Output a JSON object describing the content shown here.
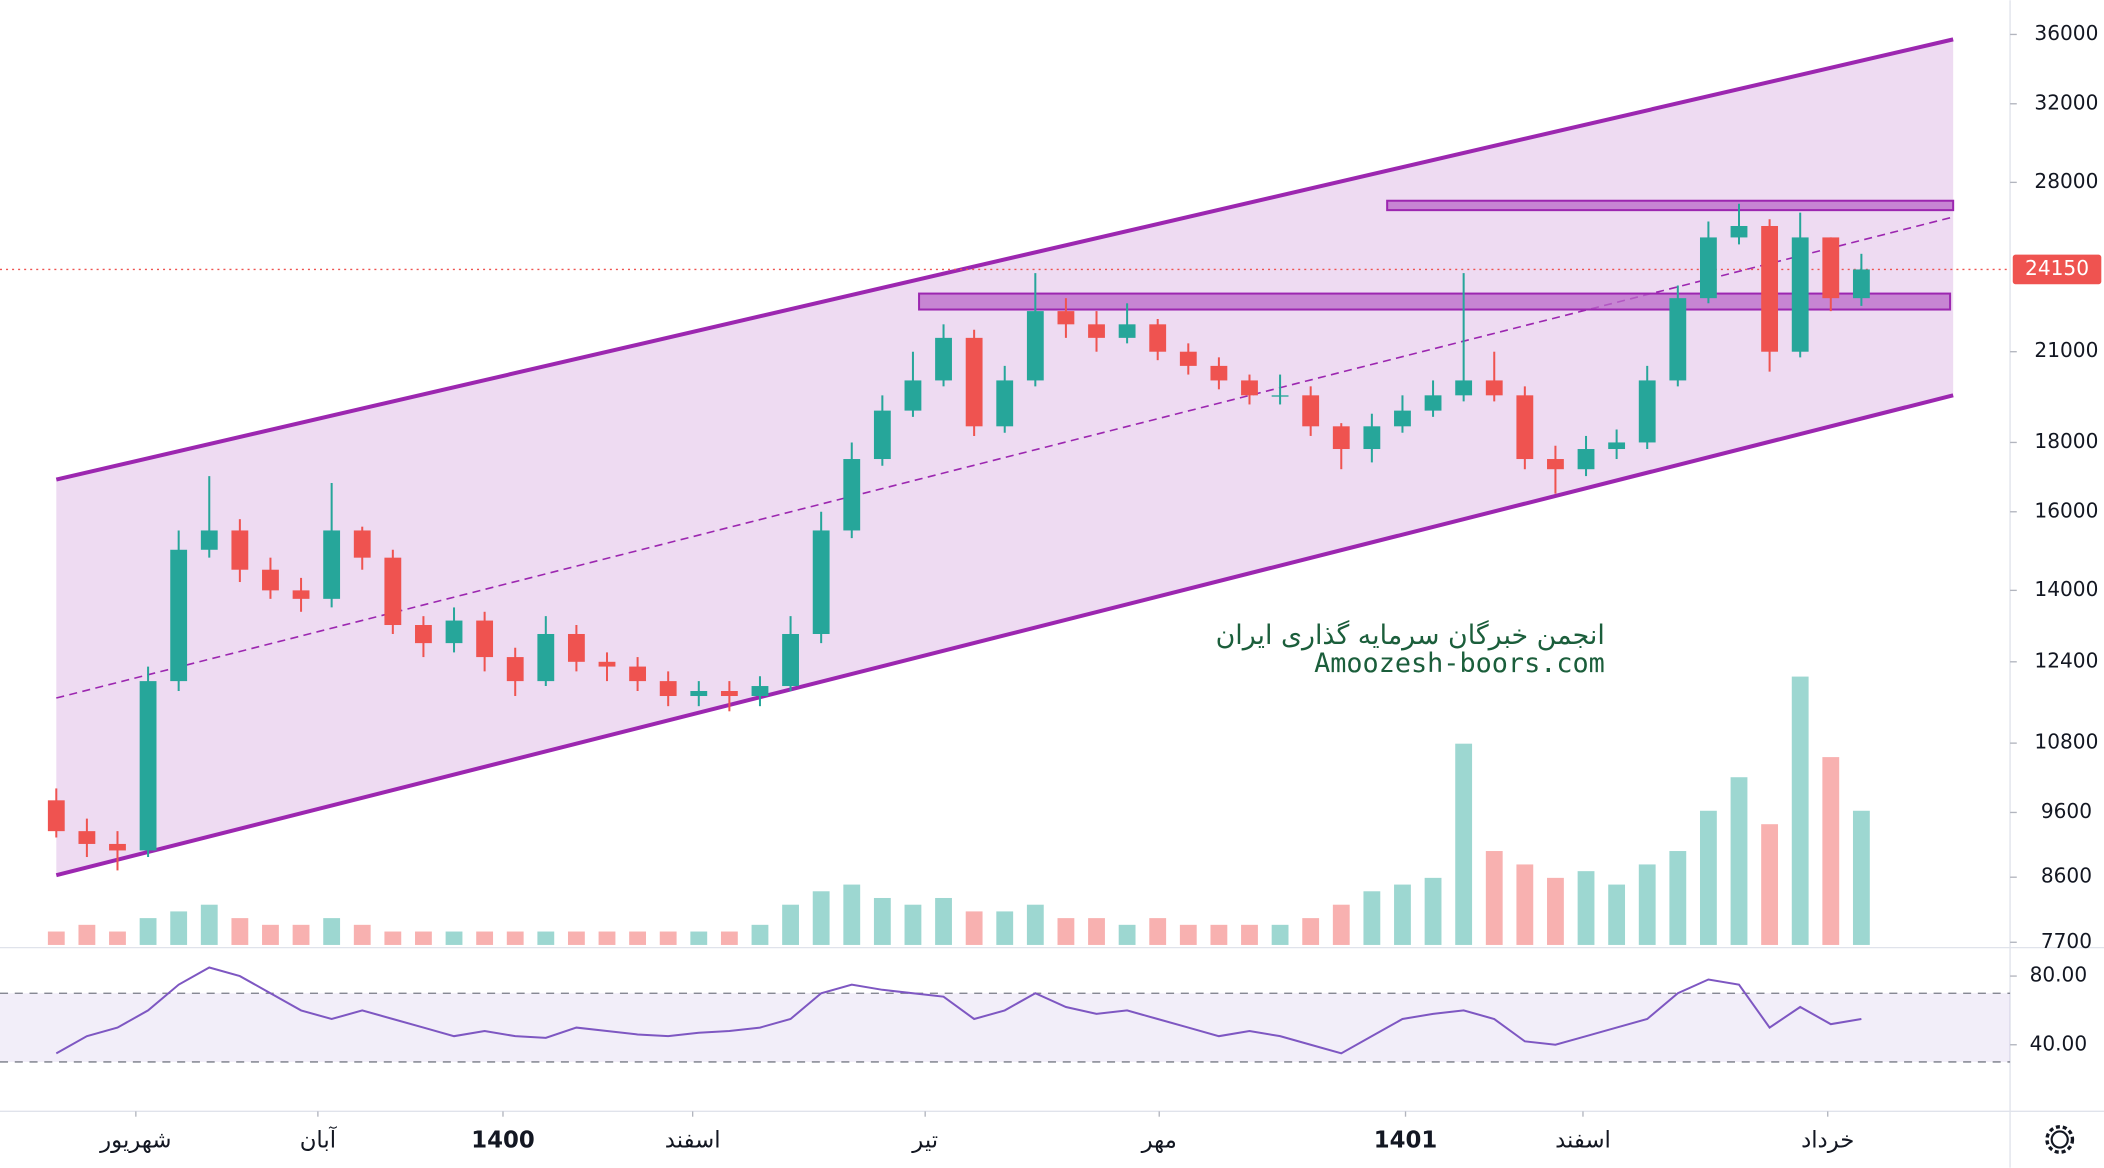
{
  "chart_data": {
    "type": "candlestick",
    "xlim": [
      -1.84,
      63.86
    ],
    "ylim": [
      7665,
      38150
    ],
    "log_scale": true,
    "yticks": [
      7700,
      8600,
      9600,
      10800,
      12400,
      14000,
      16000,
      18000,
      21000,
      28000,
      32000,
      36000
    ],
    "open": [
      9800,
      9300,
      9100,
      9000,
      12000,
      15000,
      15500,
      14500,
      14000,
      13800,
      15500,
      14800,
      13200,
      12800,
      13300,
      12500,
      12000,
      13000,
      12400,
      12300,
      12000,
      11700,
      11800,
      11700,
      11900,
      13000,
      15500,
      17500,
      19000,
      20000,
      21500,
      18500,
      20000,
      22500,
      22000,
      21500,
      22000,
      21000,
      20500,
      20000,
      19500,
      19500,
      18500,
      17800,
      18500,
      19000,
      19500,
      20000,
      19500,
      17500,
      17200,
      17800,
      18000,
      20000,
      23000,
      25500,
      26000,
      21000,
      25500,
      23000
    ],
    "high": [
      10000,
      9500,
      9300,
      12300,
      15500,
      17000,
      15800,
      14800,
      14300,
      16800,
      15600,
      15000,
      13400,
      13600,
      13500,
      12700,
      13400,
      13200,
      12600,
      12500,
      12200,
      12000,
      12000,
      12100,
      13400,
      16000,
      18000,
      19500,
      21000,
      22000,
      21800,
      20500,
      24000,
      23000,
      22500,
      22800,
      22200,
      21300,
      20800,
      20200,
      20200,
      19800,
      18600,
      18900,
      19500,
      20000,
      24000,
      21000,
      19800,
      17900,
      18200,
      18400,
      20500,
      23500,
      26200,
      27000,
      26300,
      26600,
      25500,
      24800
    ],
    "low": [
      9200,
      8900,
      8700,
      8900,
      11800,
      14800,
      14200,
      13800,
      13500,
      13600,
      14500,
      13000,
      12500,
      12600,
      12200,
      11700,
      11900,
      12200,
      12000,
      11800,
      11500,
      11500,
      11400,
      11500,
      11800,
      12800,
      15300,
      17300,
      18800,
      19800,
      18200,
      18300,
      19800,
      21500,
      21000,
      21300,
      20700,
      20200,
      19700,
      19200,
      19200,
      18200,
      17200,
      17400,
      18300,
      18800,
      19300,
      19300,
      17200,
      16500,
      17000,
      17500,
      17800,
      19800,
      22800,
      25200,
      20300,
      20800,
      22500,
      22700
    ],
    "close": [
      9300,
      9100,
      9000,
      12000,
      15000,
      15500,
      14500,
      14000,
      13800,
      15500,
      14800,
      13200,
      12800,
      13300,
      12500,
      12000,
      13000,
      12400,
      12300,
      12000,
      11700,
      11800,
      11700,
      11900,
      13000,
      15500,
      17500,
      19000,
      20000,
      21500,
      18500,
      20000,
      22500,
      22000,
      21500,
      22000,
      21000,
      20500,
      20000,
      19500,
      19500,
      18500,
      17800,
      18500,
      19000,
      19500,
      20000,
      19500,
      17500,
      17200,
      17800,
      18000,
      20000,
      23000,
      25500,
      26000,
      21000,
      25500,
      23000,
      24150
    ],
    "up_color": "#26a69a",
    "down_color": "#ef5350",
    "volume": [
      2,
      3,
      2,
      4,
      5,
      6,
      4,
      3,
      3,
      4,
      3,
      2,
      2,
      2,
      2,
      2,
      2,
      2,
      2,
      2,
      2,
      2,
      2,
      3,
      6,
      8,
      9,
      7,
      6,
      7,
      5,
      5,
      6,
      4,
      4,
      3,
      4,
      3,
      3,
      3,
      3,
      4,
      6,
      8,
      9,
      10,
      30,
      14,
      12,
      10,
      11,
      9,
      12,
      14,
      20,
      25,
      18,
      40,
      28,
      20
    ],
    "last_price": 24150,
    "channel": {
      "x": [
        0,
        62
      ],
      "upper": [
        16900,
        35700
      ],
      "lower": [
        8630,
        19500
      ],
      "mid": [
        11660,
        26400
      ],
      "color": "#9c27b0"
    },
    "zones": [
      {
        "x": [
          28.2,
          61.9
        ],
        "y": [
          22560,
          23180
        ]
      },
      {
        "x": [
          43.5,
          62
        ],
        "y": [
          26710,
          27140
        ]
      }
    ],
    "rsi": {
      "values": [
        35,
        45,
        50,
        60,
        75,
        85,
        80,
        70,
        60,
        55,
        60,
        55,
        50,
        45,
        48,
        45,
        44,
        50,
        48,
        46,
        45,
        47,
        48,
        50,
        55,
        70,
        75,
        72,
        70,
        68,
        55,
        60,
        70,
        62,
        58,
        60,
        55,
        50,
        45,
        48,
        45,
        40,
        35,
        45,
        55,
        58,
        60,
        55,
        42,
        40,
        45,
        50,
        55,
        70,
        78,
        75,
        50,
        62,
        52,
        55
      ],
      "ylim": [
        2,
        95
      ],
      "band": [
        30,
        70
      ],
      "color": "#7e57c2",
      "yticks": [
        {
          "value": 80,
          "label": "80.00"
        },
        {
          "value": 40,
          "label": "40.00"
        }
      ]
    },
    "time_labels": [
      {
        "value": 2.6,
        "label": "شهریور"
      },
      {
        "value": 8.55,
        "label": "آبان"
      },
      {
        "value": 14.6,
        "label": "1400"
      },
      {
        "value": 20.8,
        "label": "اسفند"
      },
      {
        "value": 28.4,
        "label": "تیر"
      },
      {
        "value": 36.05,
        "label": "مهر"
      },
      {
        "value": 44.1,
        "label": "1401"
      },
      {
        "value": 49.9,
        "label": "اسفند"
      },
      {
        "value": 57.9,
        "label": "خرداد"
      }
    ],
    "watermark": {
      "line1": "انجمن خبرگان سرمایه گذاری ایران",
      "line2": "Amoozesh-boors.com",
      "color": "#1b5e3b"
    }
  }
}
